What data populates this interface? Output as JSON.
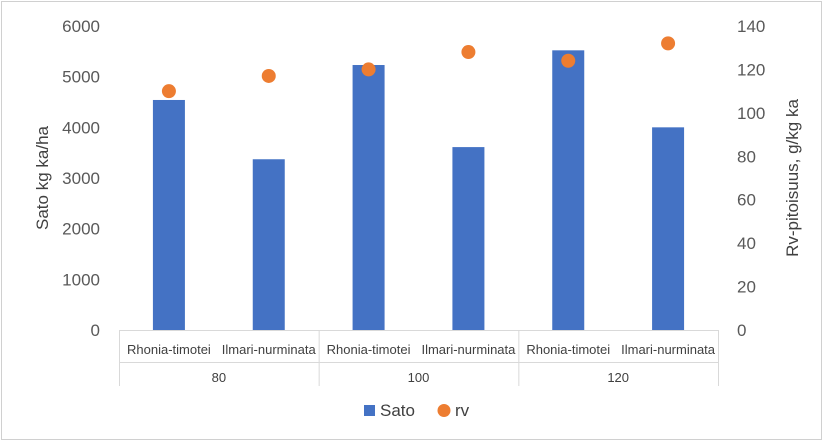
{
  "chart_data": {
    "type": "bar",
    "groups": [
      "80",
      "100",
      "120"
    ],
    "categories": [
      {
        "group": "80",
        "label": "Rhonia-timotei"
      },
      {
        "group": "80",
        "label": "Ilmari-nurminata"
      },
      {
        "group": "100",
        "label": "Rhonia-timotei"
      },
      {
        "group": "100",
        "label": "Ilmari-nurminata"
      },
      {
        "group": "120",
        "label": "Rhonia-timotei"
      },
      {
        "group": "120",
        "label": "Ilmari-nurminata"
      }
    ],
    "series": [
      {
        "name": "Sato",
        "type": "bar",
        "axis": "left",
        "color": "#4472C4",
        "values": [
          4540,
          3370,
          5230,
          3610,
          5520,
          4000
        ]
      },
      {
        "name": "rv",
        "type": "scatter",
        "axis": "right",
        "color": "#ED7D31",
        "values": [
          110,
          117,
          120,
          128,
          124,
          132
        ]
      }
    ],
    "ylabel": "Sato kg ka/ha",
    "y2label": "Rv-pitoisuus, g/kg ka",
    "ylim": [
      0,
      6000
    ],
    "y2lim": [
      0,
      140
    ],
    "yticks": [
      0,
      1000,
      2000,
      3000,
      4000,
      5000,
      6000
    ],
    "y2ticks": [
      0,
      20,
      40,
      60,
      80,
      100,
      120,
      140
    ],
    "grid": false,
    "legend": "bottom"
  }
}
